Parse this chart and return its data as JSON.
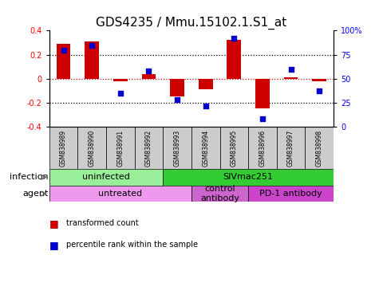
{
  "title": "GDS4235 / Mmu.15102.1.S1_at",
  "samples": [
    "GSM838989",
    "GSM838990",
    "GSM838991",
    "GSM838992",
    "GSM838993",
    "GSM838994",
    "GSM838995",
    "GSM838996",
    "GSM838997",
    "GSM838998"
  ],
  "transformed_count": [
    0.29,
    0.31,
    -0.02,
    0.04,
    -0.15,
    -0.09,
    0.32,
    -0.25,
    0.01,
    -0.02
  ],
  "percentile_rank": [
    80,
    85,
    35,
    58,
    28,
    22,
    92,
    8,
    60,
    37
  ],
  "ylim": [
    -0.4,
    0.4
  ],
  "yticks": [
    -0.4,
    -0.2,
    0.0,
    0.2,
    0.4
  ],
  "right_yticks": [
    0,
    25,
    50,
    75,
    100
  ],
  "right_ylabels": [
    "0",
    "25",
    "50",
    "75",
    "100%"
  ],
  "bar_color": "#cc0000",
  "dot_color": "#0000cc",
  "zero_line_color": "#cc0000",
  "grid_color": "#000000",
  "infection_groups": [
    {
      "label": "uninfected",
      "start": 0,
      "end": 4,
      "color": "#99ee99"
    },
    {
      "label": "SIVmac251",
      "start": 4,
      "end": 10,
      "color": "#33cc33"
    }
  ],
  "agent_groups": [
    {
      "label": "untreated",
      "start": 0,
      "end": 5,
      "color": "#ee99ee"
    },
    {
      "label": "control\nantibody",
      "start": 5,
      "end": 7,
      "color": "#cc66cc"
    },
    {
      "label": "PD-1 antibody",
      "start": 7,
      "end": 10,
      "color": "#cc44cc"
    }
  ],
  "infection_label": "infection",
  "agent_label": "agent",
  "legend_red_label": "transformed count",
  "legend_blue_label": "percentile rank within the sample",
  "sample_box_color": "#cccccc",
  "title_fontsize": 11,
  "tick_fontsize": 7,
  "label_fontsize": 8,
  "group_fontsize": 8,
  "sample_fontsize": 5.5
}
